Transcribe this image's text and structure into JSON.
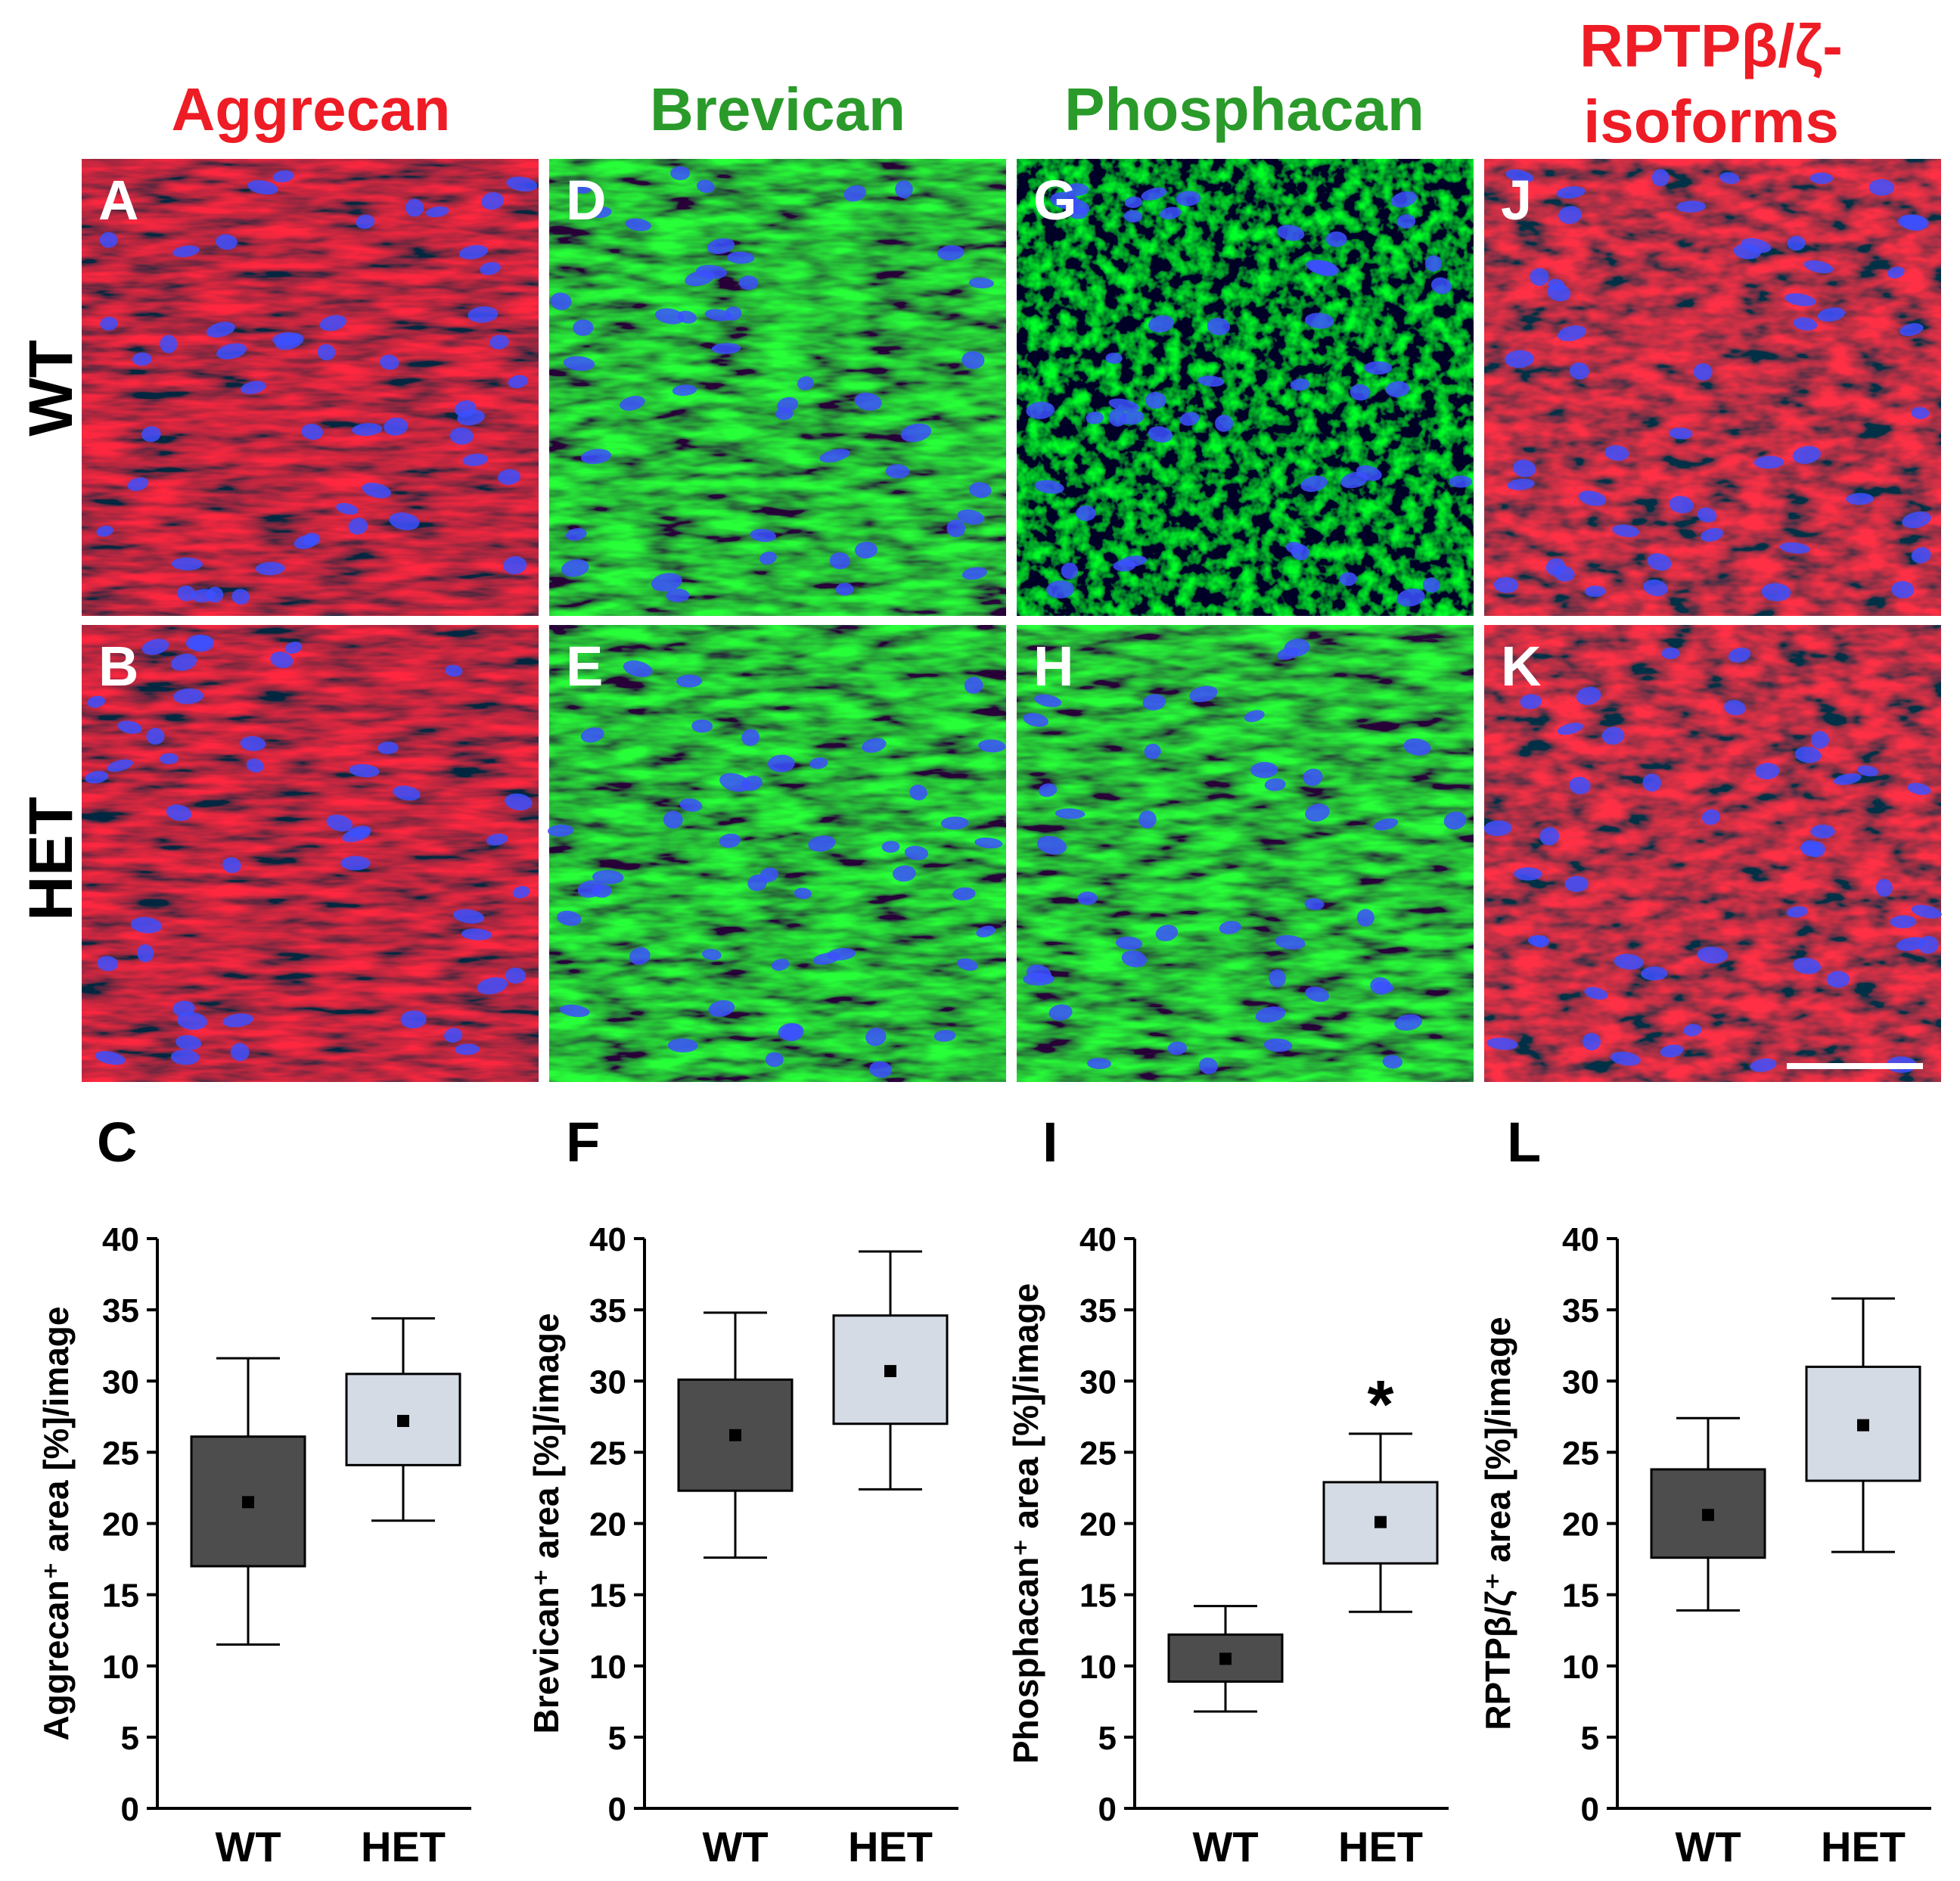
{
  "figure": {
    "columns": [
      {
        "title": "Aggrecan",
        "color": "#ee1c25"
      },
      {
        "title": "Brevican",
        "color": "#2a9a2a"
      },
      {
        "title": "Phosphacan",
        "color": "#2a9a2a"
      },
      {
        "title": "RPTPβ/ζ-",
        "title_line2": "isoforms",
        "color": "#ee1c25"
      }
    ],
    "row_labels": [
      "WT",
      "HET"
    ],
    "panels": [
      {
        "letter": "A",
        "stain": "red"
      },
      {
        "letter": "D",
        "stain": "green"
      },
      {
        "letter": "G",
        "stain": "green-dim"
      },
      {
        "letter": "J",
        "stain": "red"
      },
      {
        "letter": "B",
        "stain": "red"
      },
      {
        "letter": "E",
        "stain": "green"
      },
      {
        "letter": "H",
        "stain": "green"
      },
      {
        "letter": "K",
        "stain": "red"
      }
    ],
    "nucleus_color": "#3c50ff",
    "box_colors": {
      "WT": "#4d4d4d",
      "HET": "#d5dbe4"
    }
  },
  "chart_data": [
    {
      "type": "box",
      "panel": "C",
      "ylabel": "Aggrecan⁺ area [%]/image",
      "ylim": [
        0,
        40
      ],
      "yticks": [
        0,
        5,
        10,
        15,
        20,
        25,
        30,
        35,
        40
      ],
      "categories": [
        "WT",
        "HET"
      ],
      "boxes": [
        {
          "min": 11.5,
          "q1": 17.0,
          "mean": 21.5,
          "q3": 26.1,
          "max": 31.6
        },
        {
          "min": 20.2,
          "q1": 24.1,
          "mean": 27.2,
          "q3": 30.5,
          "max": 34.4
        }
      ],
      "annotations": []
    },
    {
      "type": "box",
      "panel": "F",
      "ylabel": "Brevican⁺ area [%]/image",
      "ylim": [
        0,
        40
      ],
      "yticks": [
        0,
        5,
        10,
        15,
        20,
        25,
        30,
        35,
        40
      ],
      "categories": [
        "WT",
        "HET"
      ],
      "boxes": [
        {
          "min": 17.6,
          "q1": 22.3,
          "mean": 26.2,
          "q3": 30.1,
          "max": 34.8
        },
        {
          "min": 22.4,
          "q1": 27.0,
          "mean": 30.7,
          "q3": 34.6,
          "max": 39.1
        }
      ],
      "annotations": []
    },
    {
      "type": "box",
      "panel": "I",
      "ylabel": "Phosphacan⁺ area [%]/image",
      "ylim": [
        0,
        40
      ],
      "yticks": [
        0,
        5,
        10,
        15,
        20,
        25,
        30,
        35,
        40
      ],
      "categories": [
        "WT",
        "HET"
      ],
      "boxes": [
        {
          "min": 6.8,
          "q1": 8.9,
          "mean": 10.5,
          "q3": 12.2,
          "max": 14.2
        },
        {
          "min": 13.8,
          "q1": 17.2,
          "mean": 20.1,
          "q3": 22.9,
          "max": 26.3
        }
      ],
      "annotations": [
        {
          "category": "HET",
          "text": "*"
        }
      ]
    },
    {
      "type": "box",
      "panel": "L",
      "ylabel": "RPTPβ/ζ⁺ area [%]/image",
      "ylim": [
        0,
        40
      ],
      "yticks": [
        0,
        5,
        10,
        15,
        20,
        25,
        30,
        35,
        40
      ],
      "categories": [
        "WT",
        "HET"
      ],
      "boxes": [
        {
          "min": 13.9,
          "q1": 17.6,
          "mean": 20.6,
          "q3": 23.8,
          "max": 27.4
        },
        {
          "min": 18.0,
          "q1": 23.0,
          "mean": 26.9,
          "q3": 31.0,
          "max": 35.8
        }
      ],
      "annotations": []
    }
  ]
}
